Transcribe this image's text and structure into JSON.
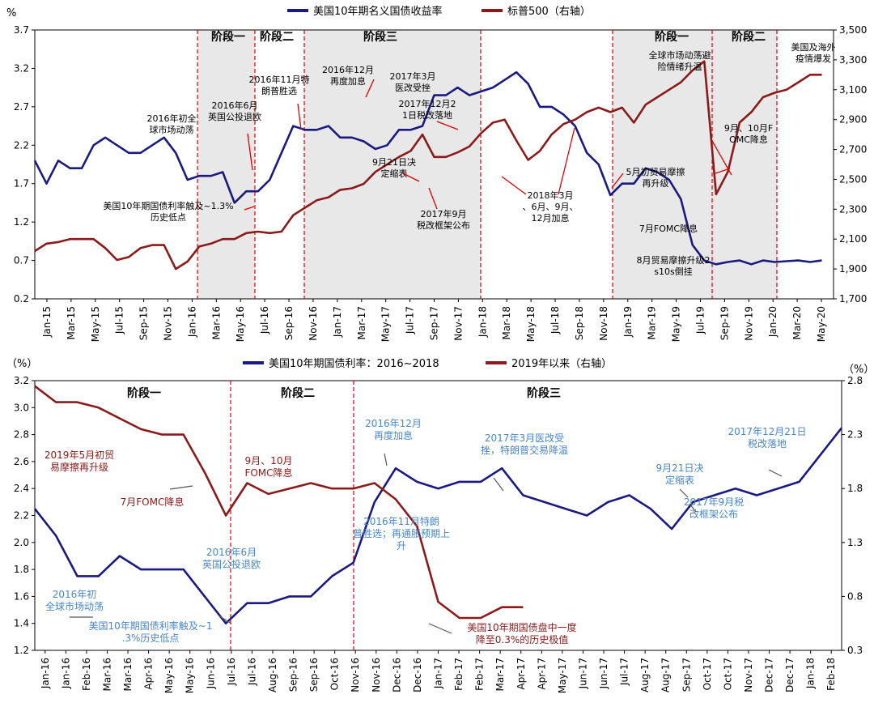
{
  "chart_data": [
    {
      "type": "line",
      "legend": [
        "美国10年期名义国债收益率",
        "标普500（右轴）"
      ],
      "y_left_unit": "%",
      "y_left_ticks": [
        "0.2",
        "0.7",
        "1.2",
        "1.7",
        "2.2",
        "2.7",
        "3.2",
        "3.7"
      ],
      "y_left_range": [
        0.2,
        3.7
      ],
      "y_right_ticks": [
        "1,700",
        "1,900",
        "2,100",
        "2,300",
        "2,500",
        "2,700",
        "2,900",
        "3,100",
        "3,300",
        "3,500"
      ],
      "y_right_range": [
        1700,
        3500
      ],
      "x_ticks": [
        "Jan-15",
        "Mar-15",
        "May-15",
        "Jul-15",
        "Sep-15",
        "Nov-15",
        "Jan-16",
        "Mar-16",
        "May-16",
        "Jul-16",
        "Sep-16",
        "Nov-16",
        "Jan-17",
        "Mar-17",
        "May-17",
        "Jul-17",
        "Sep-17",
        "Nov-17",
        "Jan-18",
        "Mar-18",
        "May-18",
        "Jul-18",
        "Sep-18",
        "Nov-18",
        "Jan-19",
        "Mar-19",
        "May-19",
        "Jul-19",
        "Sep-19",
        "Nov-19",
        "Jan-20",
        "Mar-20",
        "May-20"
      ],
      "x_range": [
        0,
        68
      ],
      "stages": [
        "阶段一",
        "阶段二",
        "阶段三",
        "阶段一",
        "阶段二"
      ],
      "series": [
        {
          "name": "美国10年期名义国债收益率",
          "color": "#1a1a80",
          "x": [
            0,
            1,
            2,
            3,
            4,
            5,
            6,
            7,
            8,
            9,
            10,
            11,
            12,
            13,
            14,
            15,
            16,
            17,
            18,
            19,
            20,
            21,
            22,
            23,
            24,
            25,
            26,
            27,
            28,
            29,
            30,
            31,
            32,
            33,
            34,
            35,
            36,
            37,
            38,
            39,
            40,
            41,
            42,
            43,
            44,
            45,
            46,
            47,
            48,
            49,
            50,
            51,
            52,
            53,
            54,
            55,
            56,
            57,
            58,
            59,
            60,
            61,
            62,
            63,
            64,
            65,
            66,
            67
          ],
          "y": [
            2.0,
            1.7,
            2.0,
            1.9,
            1.9,
            2.2,
            2.3,
            2.2,
            2.1,
            2.1,
            2.2,
            2.3,
            2.1,
            1.75,
            1.8,
            1.8,
            1.85,
            1.45,
            1.6,
            1.6,
            1.75,
            2.1,
            2.45,
            2.4,
            2.4,
            2.45,
            2.3,
            2.3,
            2.25,
            2.15,
            2.2,
            2.4,
            2.4,
            2.45,
            2.85,
            2.85,
            2.95,
            2.85,
            2.9,
            2.95,
            3.05,
            3.15,
            3.0,
            2.7,
            2.7,
            2.6,
            2.45,
            2.1,
            1.95,
            1.55,
            1.7,
            1.7,
            1.9,
            1.85,
            1.75,
            1.5,
            0.9,
            0.7,
            0.65,
            0.68,
            0.7,
            0.65,
            0.7,
            0.68,
            0.69,
            0.7,
            0.68,
            0.7
          ]
        },
        {
          "name": "标普500（右轴）",
          "color": "#8b1a1a",
          "x": [
            0,
            1,
            2,
            3,
            4,
            5,
            6,
            7,
            8,
            9,
            10,
            11,
            12,
            13,
            14,
            15,
            16,
            17,
            18,
            19,
            20,
            21,
            22,
            23,
            24,
            25,
            26,
            27,
            28,
            29,
            30,
            31,
            32,
            33,
            34,
            35,
            36,
            37,
            38,
            39,
            40,
            41,
            42,
            43,
            44,
            45,
            46,
            47,
            48,
            49,
            50,
            51,
            52,
            53,
            54,
            55,
            56,
            57,
            58,
            59,
            60,
            61,
            62,
            63,
            64,
            65,
            66,
            67
          ],
          "y": [
            2020,
            2070,
            2080,
            2100,
            2100,
            2100,
            2040,
            1960,
            1980,
            2040,
            2060,
            2060,
            1900,
            1950,
            2050,
            2070,
            2100,
            2100,
            2140,
            2150,
            2140,
            2150,
            2260,
            2310,
            2360,
            2380,
            2430,
            2440,
            2470,
            2550,
            2600,
            2650,
            2690,
            2800,
            2650,
            2650,
            2680,
            2720,
            2810,
            2880,
            2900,
            2760,
            2630,
            2690,
            2800,
            2870,
            2900,
            2950,
            2980,
            2950,
            2980,
            2880,
            3000,
            3050,
            3100,
            3150,
            3230,
            3290,
            2400,
            2550,
            2880,
            2950,
            3050,
            3080,
            3100,
            3150,
            3200,
            3200
          ]
        }
      ],
      "annotations": [
        "2016年初全球市场动荡",
        "2016年6月英国公投退欧",
        "美国10年期国债利率触及~1.3%历史低点",
        "2016年11月特朗普胜选",
        "2016年12月再度加息",
        "2017年3月医改受挫",
        "2017年12月21日税改落地",
        "9月21日决定缩表",
        "2017年9月税改框架公布",
        "2018年3月、6月、9月、12月加息",
        "全球市场动荡避险情绪升温",
        "美国及海外疫情爆发",
        "9月、10月FOMC降息",
        "5月初贸易摩擦再升级",
        "7月FOMC降息",
        "8月贸易摩擦升级2s10s倒挂"
      ]
    },
    {
      "type": "line",
      "legend": [
        "美国10年期国债利率：2016~2018",
        "2019年以来（右轴）"
      ],
      "y_left_unit": "（%）",
      "y_right_unit": "（%）",
      "y_left_ticks": [
        "1.2",
        "1.4",
        "1.6",
        "1.8",
        "2.0",
        "2.2",
        "2.4",
        "2.6",
        "2.8",
        "3.0",
        "3.2"
      ],
      "y_left_range": [
        1.2,
        3.2
      ],
      "y_right_ticks": [
        "0.3",
        "0.8",
        "1.3",
        "1.8",
        "2.3",
        "2.8"
      ],
      "y_right_range": [
        0.3,
        2.8
      ],
      "x_ticks": [
        "Jan-16",
        "Jan-16",
        "Feb-16",
        "Mar-16",
        "Mar-16",
        "Apr-16",
        "May-16",
        "May-16",
        "Jun-16",
        "Jul-16",
        "Jul-16",
        "Aug-16",
        "Sep-16",
        "Sep-16",
        "Oct-16",
        "Nov-16",
        "Nov-16",
        "Dec-16",
        "Dec-16",
        "Jan-17",
        "Feb-17",
        "Feb-17",
        "Mar-17",
        "Apr-17",
        "Apr-17",
        "May-17",
        "Jun-17",
        "Jun-17",
        "Jul-17",
        "Aug-17",
        "Aug-17",
        "Sep-17",
        "Oct-17",
        "Oct-17",
        "Nov-17",
        "Dec-17",
        "Dec-17",
        "Jan-18",
        "Feb-18"
      ],
      "x_range": [
        0,
        38
      ],
      "stages": [
        "阶段一",
        "阶段二",
        "阶段三"
      ],
      "series": [
        {
          "name": "美国10年期国债利率：2016~2018",
          "color": "#1a1a80",
          "x": [
            0,
            1,
            2,
            3,
            4,
            5,
            6,
            7,
            8,
            9,
            10,
            11,
            12,
            13,
            14,
            15,
            16,
            17,
            18,
            19,
            20,
            21,
            22,
            23,
            24,
            25,
            26,
            27,
            28,
            29,
            30,
            31,
            32,
            33,
            34,
            35,
            36,
            37,
            38
          ],
          "y": [
            2.25,
            2.05,
            1.75,
            1.75,
            1.9,
            1.8,
            1.8,
            1.8,
            1.6,
            1.4,
            1.55,
            1.55,
            1.6,
            1.6,
            1.75,
            1.85,
            2.3,
            2.55,
            2.45,
            2.4,
            2.45,
            2.45,
            2.55,
            2.35,
            2.3,
            2.25,
            2.2,
            2.3,
            2.35,
            2.25,
            2.1,
            2.3,
            2.35,
            2.4,
            2.35,
            2.4,
            2.45,
            2.65,
            2.85
          ]
        },
        {
          "name": "2019年以来（右轴）",
          "color": "#8b1a1a",
          "x": [
            0,
            1,
            2,
            3,
            4,
            5,
            6,
            7,
            8,
            9,
            10,
            11,
            12,
            13,
            14,
            15,
            16,
            17,
            18,
            19,
            20,
            21,
            22,
            23
          ],
          "y": [
            2.75,
            2.6,
            2.6,
            2.55,
            2.45,
            2.35,
            2.3,
            2.3,
            1.95,
            1.55,
            1.85,
            1.75,
            1.8,
            1.85,
            1.8,
            1.8,
            1.85,
            1.7,
            1.45,
            0.75,
            0.6,
            0.6,
            0.7,
            0.7
          ]
        }
      ],
      "annotations": [
        "2019年5月初贸易摩擦再升级",
        "7月FOMC降息",
        "9月、10月FOMC降息",
        "2016年初全球市场动荡",
        "2016年6月英国公投退欧",
        "美国10年期国债利率触及~1.3%历史低点",
        "2016年11月特朗普胜选；再通胀预期上升",
        "2016年12月再度加息",
        "2017年3月医改受挫，特朗普交易降温",
        "9月21日决定缩表",
        "2017年9月税改框架公布",
        "2017年12月21日税改落地",
        "美国10年期国债盘中一度降至0.3%的历史极值"
      ]
    }
  ]
}
